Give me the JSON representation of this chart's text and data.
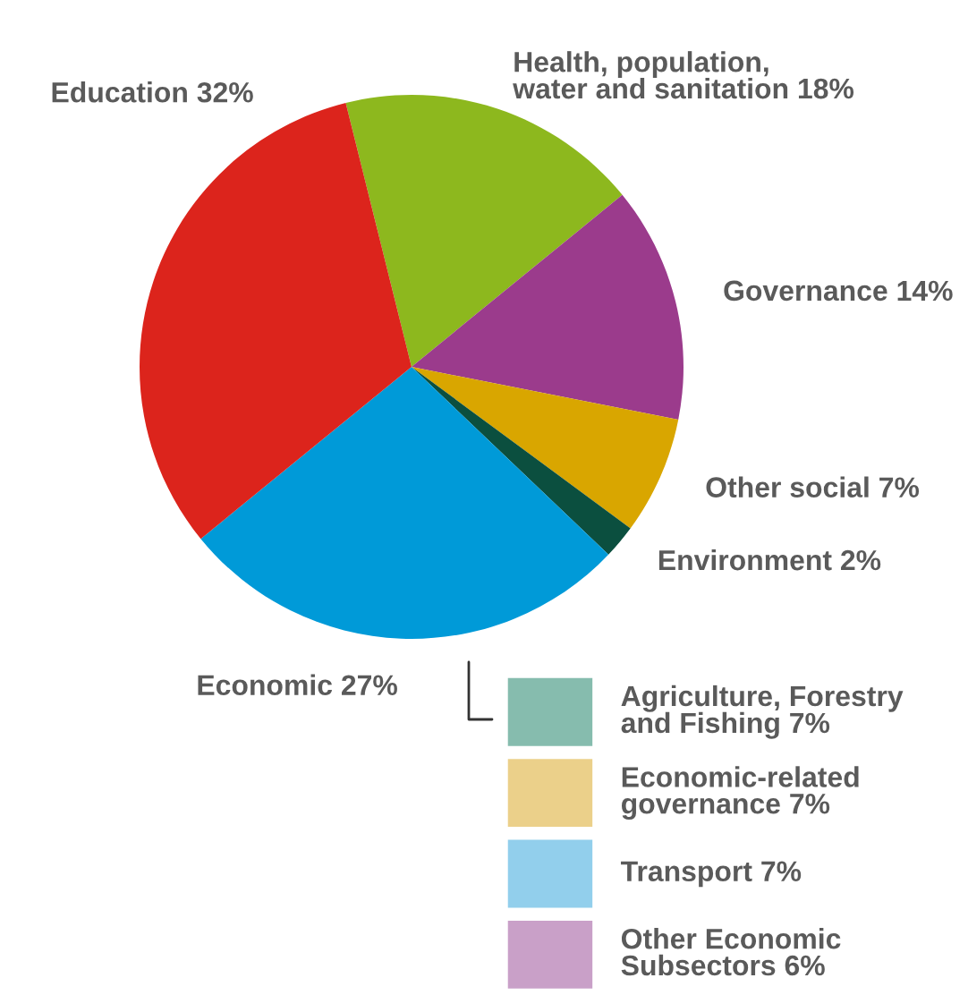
{
  "chart_data": [
    {
      "type": "pie",
      "categories": [
        "Health, population,\nwater and sanitation",
        "Governance",
        "Other social",
        "Environment",
        "Economic",
        "Education"
      ],
      "values": [
        18,
        14,
        7,
        2,
        27,
        32
      ],
      "value_labels": [
        "18%",
        "14%",
        "7%",
        "2%",
        "27%",
        "32%"
      ],
      "colors": [
        "#8db81e",
        "#9b3b8c",
        "#d9a600",
        "#0b4f3f",
        "#009ad8",
        "#dc241c"
      ]
    },
    {
      "type": "other",
      "categories": [
        "Agriculture, Forestry\nand Fishing 7%",
        "Economic-related\ngovernance 7%",
        "Transport 7%",
        "Other Economic\nSubsectors 6%"
      ],
      "colors": [
        "#86bcae",
        "#ebd08a",
        "#92cfec",
        "#c9a0c8"
      ]
    }
  ]
}
